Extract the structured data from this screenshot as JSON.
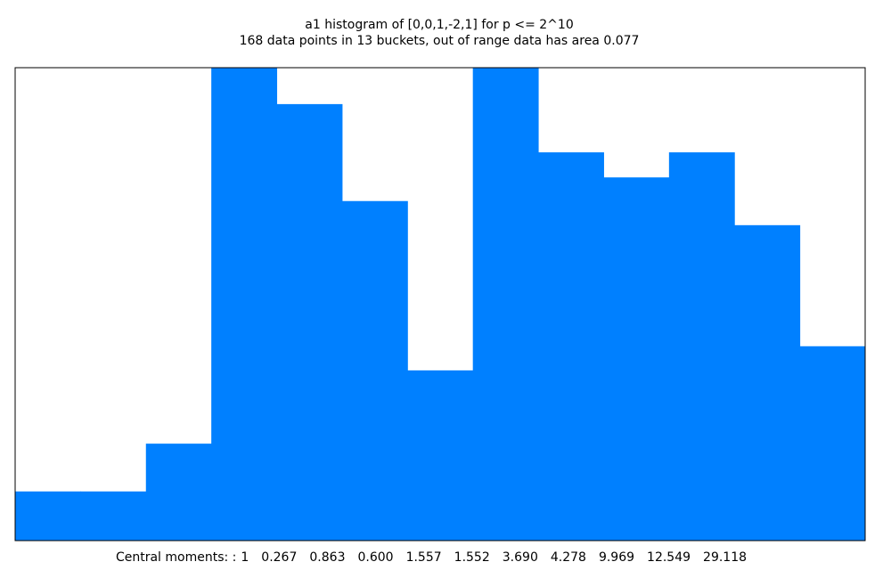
{
  "chart_data": {
    "type": "histogram",
    "title": "a1 histogram of [0,0,1,-2,1] for p <= 2^10",
    "subtitle": "168 data points in 13 buckets, out of range data has area 0.077",
    "bins": [
      0,
      1,
      2,
      3,
      4,
      5,
      6,
      7,
      8,
      9,
      10,
      11,
      12,
      13
    ],
    "values": [
      0.104,
      0.104,
      0.205,
      1,
      0.923,
      0.718,
      0.36,
      1,
      0.821,
      0.768,
      0.821,
      0.667,
      0.411
    ],
    "color": "#0080ff",
    "xlim": [
      0,
      13
    ],
    "ylim": [
      0,
      1
    ],
    "footer": {
      "label": "Central moments: :",
      "moments": [
        "1",
        "0.267",
        "0.863",
        "0.600",
        "1.557",
        "1.552",
        "3.690",
        "4.278",
        "9.969",
        "12.549",
        "29.118"
      ]
    }
  }
}
